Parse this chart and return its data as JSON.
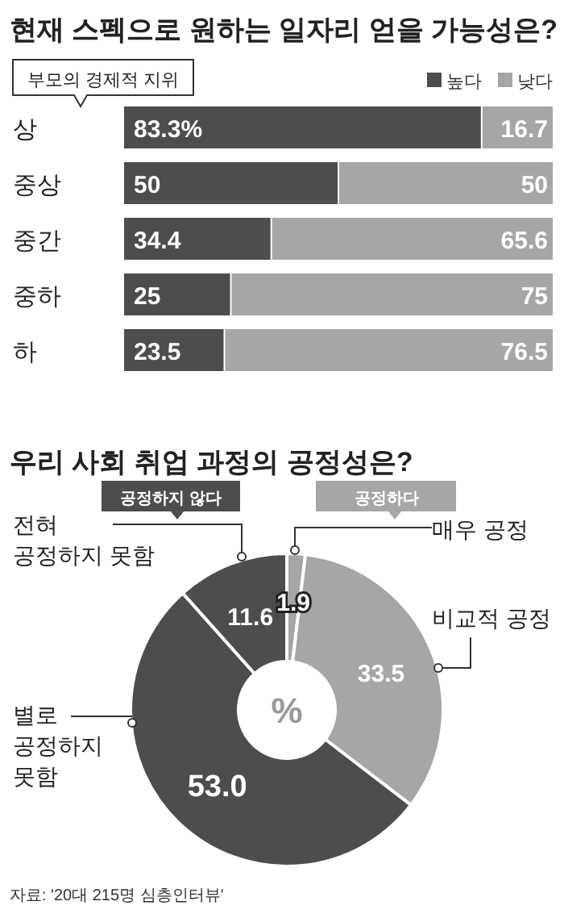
{
  "chart_data": [
    {
      "type": "bar",
      "orientation": "horizontal",
      "stacked": true,
      "title": "현재 스펙으로 원하는 일자리 얻을 가능성은?",
      "ylabel": "부모의 경제적 지위",
      "legend": "top right",
      "categories": [
        "상",
        "중상",
        "중간",
        "중하",
        "하"
      ],
      "series": [
        {
          "name": "높다",
          "color": "#4d4d4d",
          "values": [
            83.3,
            50,
            34.4,
            25,
            23.5
          ],
          "value_labels": [
            "83.3%",
            "50",
            "34.4",
            "25",
            "23.5"
          ]
        },
        {
          "name": "낮다",
          "color": "#a6a6a6",
          "values": [
            16.7,
            50,
            65.6,
            75,
            76.5
          ],
          "value_labels": [
            "16.7",
            "50",
            "65.6",
            "75",
            "76.5"
          ]
        }
      ]
    },
    {
      "type": "donut",
      "title": "우리 사회 취업 과정의 공정성은?",
      "categories": [
        "매우 공정",
        "비교적 공정",
        "별로 공정하지 못함",
        "전혀 공정하지 못함"
      ],
      "values": [
        1.9,
        33.5,
        53.0,
        11.6
      ],
      "colors": [
        "#a6a6a6",
        "#a6a6a6",
        "#4d4d4d",
        "#4d4d4d"
      ],
      "value_labels": [
        "1.9",
        "33.5",
        "53.0",
        "11.6"
      ],
      "annotations": [
        "공정하지 않다",
        "공정하다",
        "%",
        "자료: '20대 215명 심층인터뷰'"
      ]
    }
  ]
}
